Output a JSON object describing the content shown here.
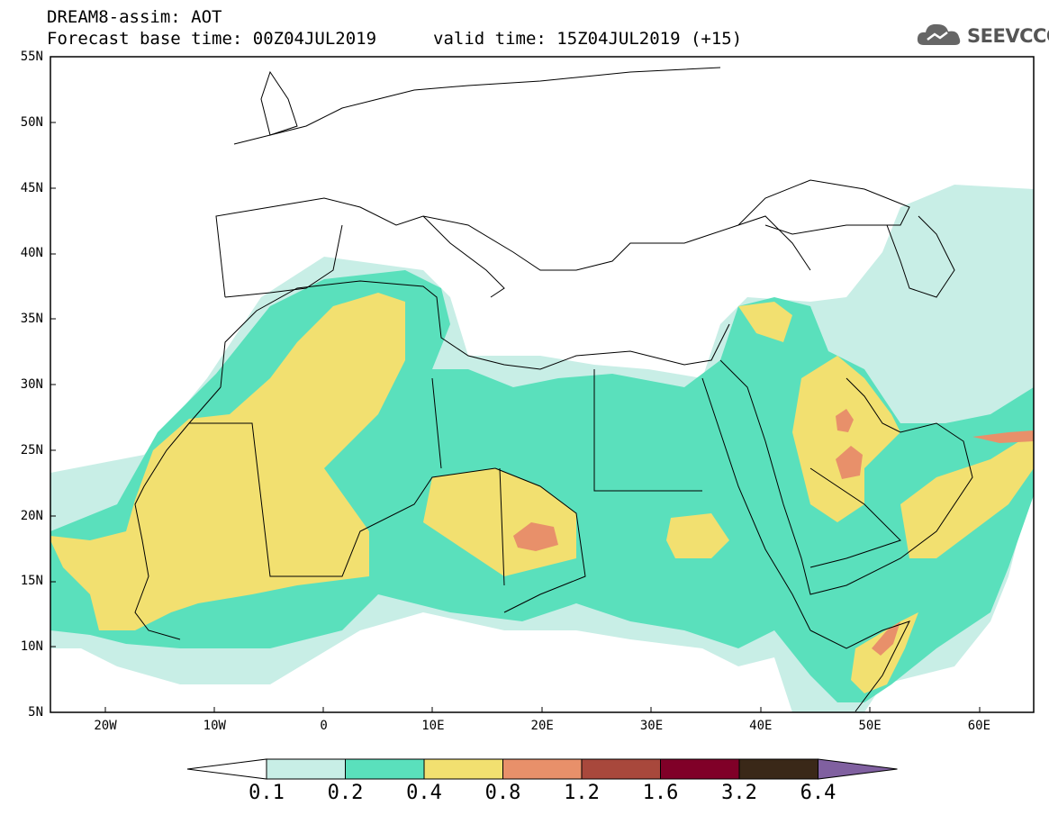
{
  "header": {
    "title": "DREAM8-assim: AOT",
    "base_time": "Forecast base time: 00Z04JUL2019",
    "valid_time": "valid time: 15Z04JUL2019 (+15)"
  },
  "logo": {
    "text": "SEEVCCC",
    "icon": "cloud-icon"
  },
  "map": {
    "lat_labels": [
      "55N",
      "50N",
      "45N",
      "40N",
      "35N",
      "30N",
      "25N",
      "20N",
      "15N",
      "10N",
      "5N"
    ],
    "lon_labels": [
      "20W",
      "10W",
      "0",
      "10E",
      "20E",
      "30E",
      "40E",
      "50E",
      "60E"
    ],
    "lon_range": [
      -25,
      65
    ],
    "lat_range": [
      5,
      55
    ]
  },
  "colorbar": {
    "levels": [
      "0.1",
      "0.2",
      "0.4",
      "0.8",
      "1.2",
      "1.6",
      "3.2",
      "6.4"
    ],
    "colors": [
      "#ffffff",
      "#c8eee6",
      "#5ae0bc",
      "#f2e070",
      "#e8906a",
      "#a8483c",
      "#800028",
      "#3a2818",
      "#8060a0"
    ]
  }
}
